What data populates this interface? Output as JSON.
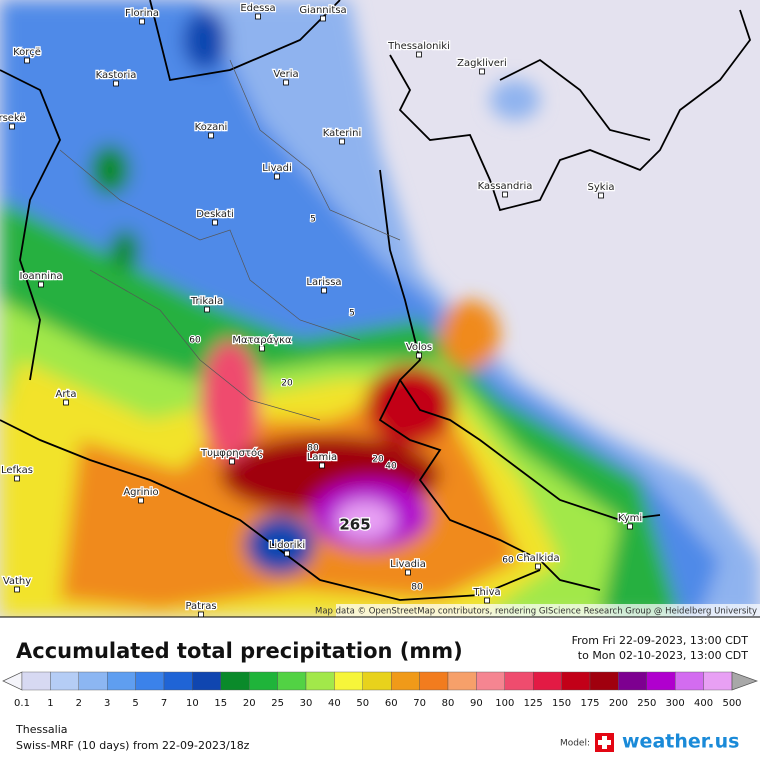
{
  "map": {
    "cities": [
      "Florina",
      "Edessa",
      "Giannitsa",
      "Korçë",
      "Thessaloniki",
      "Kastoria",
      "Veria",
      "Zagkliveri",
      "rsekë",
      "Kozani",
      "Katerini",
      "Livadi",
      "Kassandria",
      "Sykia",
      "Deskati",
      "Ioannina",
      "Larissa",
      "Trikala",
      "Ματαράγκα",
      "Volos",
      "Arta",
      "Lefkas",
      "Τυμφρηστός",
      "Lamia",
      "Agrinio",
      "Kymi",
      "Lidoriki",
      "Chalkida",
      "Livadia",
      "Vathy",
      "Thiva",
      "Patras"
    ],
    "contour_labels": [
      "5",
      "5",
      "60",
      "20",
      "80",
      "20",
      "40",
      "60",
      "80"
    ],
    "max_label": "265",
    "attribution": "Map data © OpenStreetMap contributors, rendering GIScience Research Group @ Heidelberg University"
  },
  "legend": {
    "title": "Accumulated total precipitation (mm)",
    "from": "From Fri 22-09-2023, 13:00 CDT",
    "to": "to Mon 02-10-2023, 13:00 CDT",
    "levels": [
      0.1,
      1,
      2,
      3,
      5,
      7,
      10,
      15,
      20,
      25,
      30,
      40,
      50,
      60,
      70,
      80,
      90,
      100,
      125,
      150,
      175,
      200,
      250,
      300,
      400,
      500
    ],
    "colors": [
      "#f4f4fa",
      "#d7d9f2",
      "#b5cdf5",
      "#8cb6f2",
      "#5f9ef0",
      "#3b82ea",
      "#1f64d6",
      "#1046b0",
      "#0a8a2a",
      "#1fb43a",
      "#52d244",
      "#a2e84a",
      "#f6f53a",
      "#e8d21c",
      "#f09a19",
      "#f27c1e",
      "#f6a06a",
      "#f58591",
      "#ef4c6e",
      "#e31a44",
      "#c20018",
      "#a0000e",
      "#7d0090",
      "#b000ce",
      "#d36cf0",
      "#e8a0f4",
      "#f6d8f8",
      "#a8a8a8"
    ]
  },
  "footer": {
    "region": "Thessalia",
    "model_run": "Swiss-MRF (10 days) from 22-09-2023/18z",
    "model_label": "Model:",
    "brand": "weather.us"
  }
}
